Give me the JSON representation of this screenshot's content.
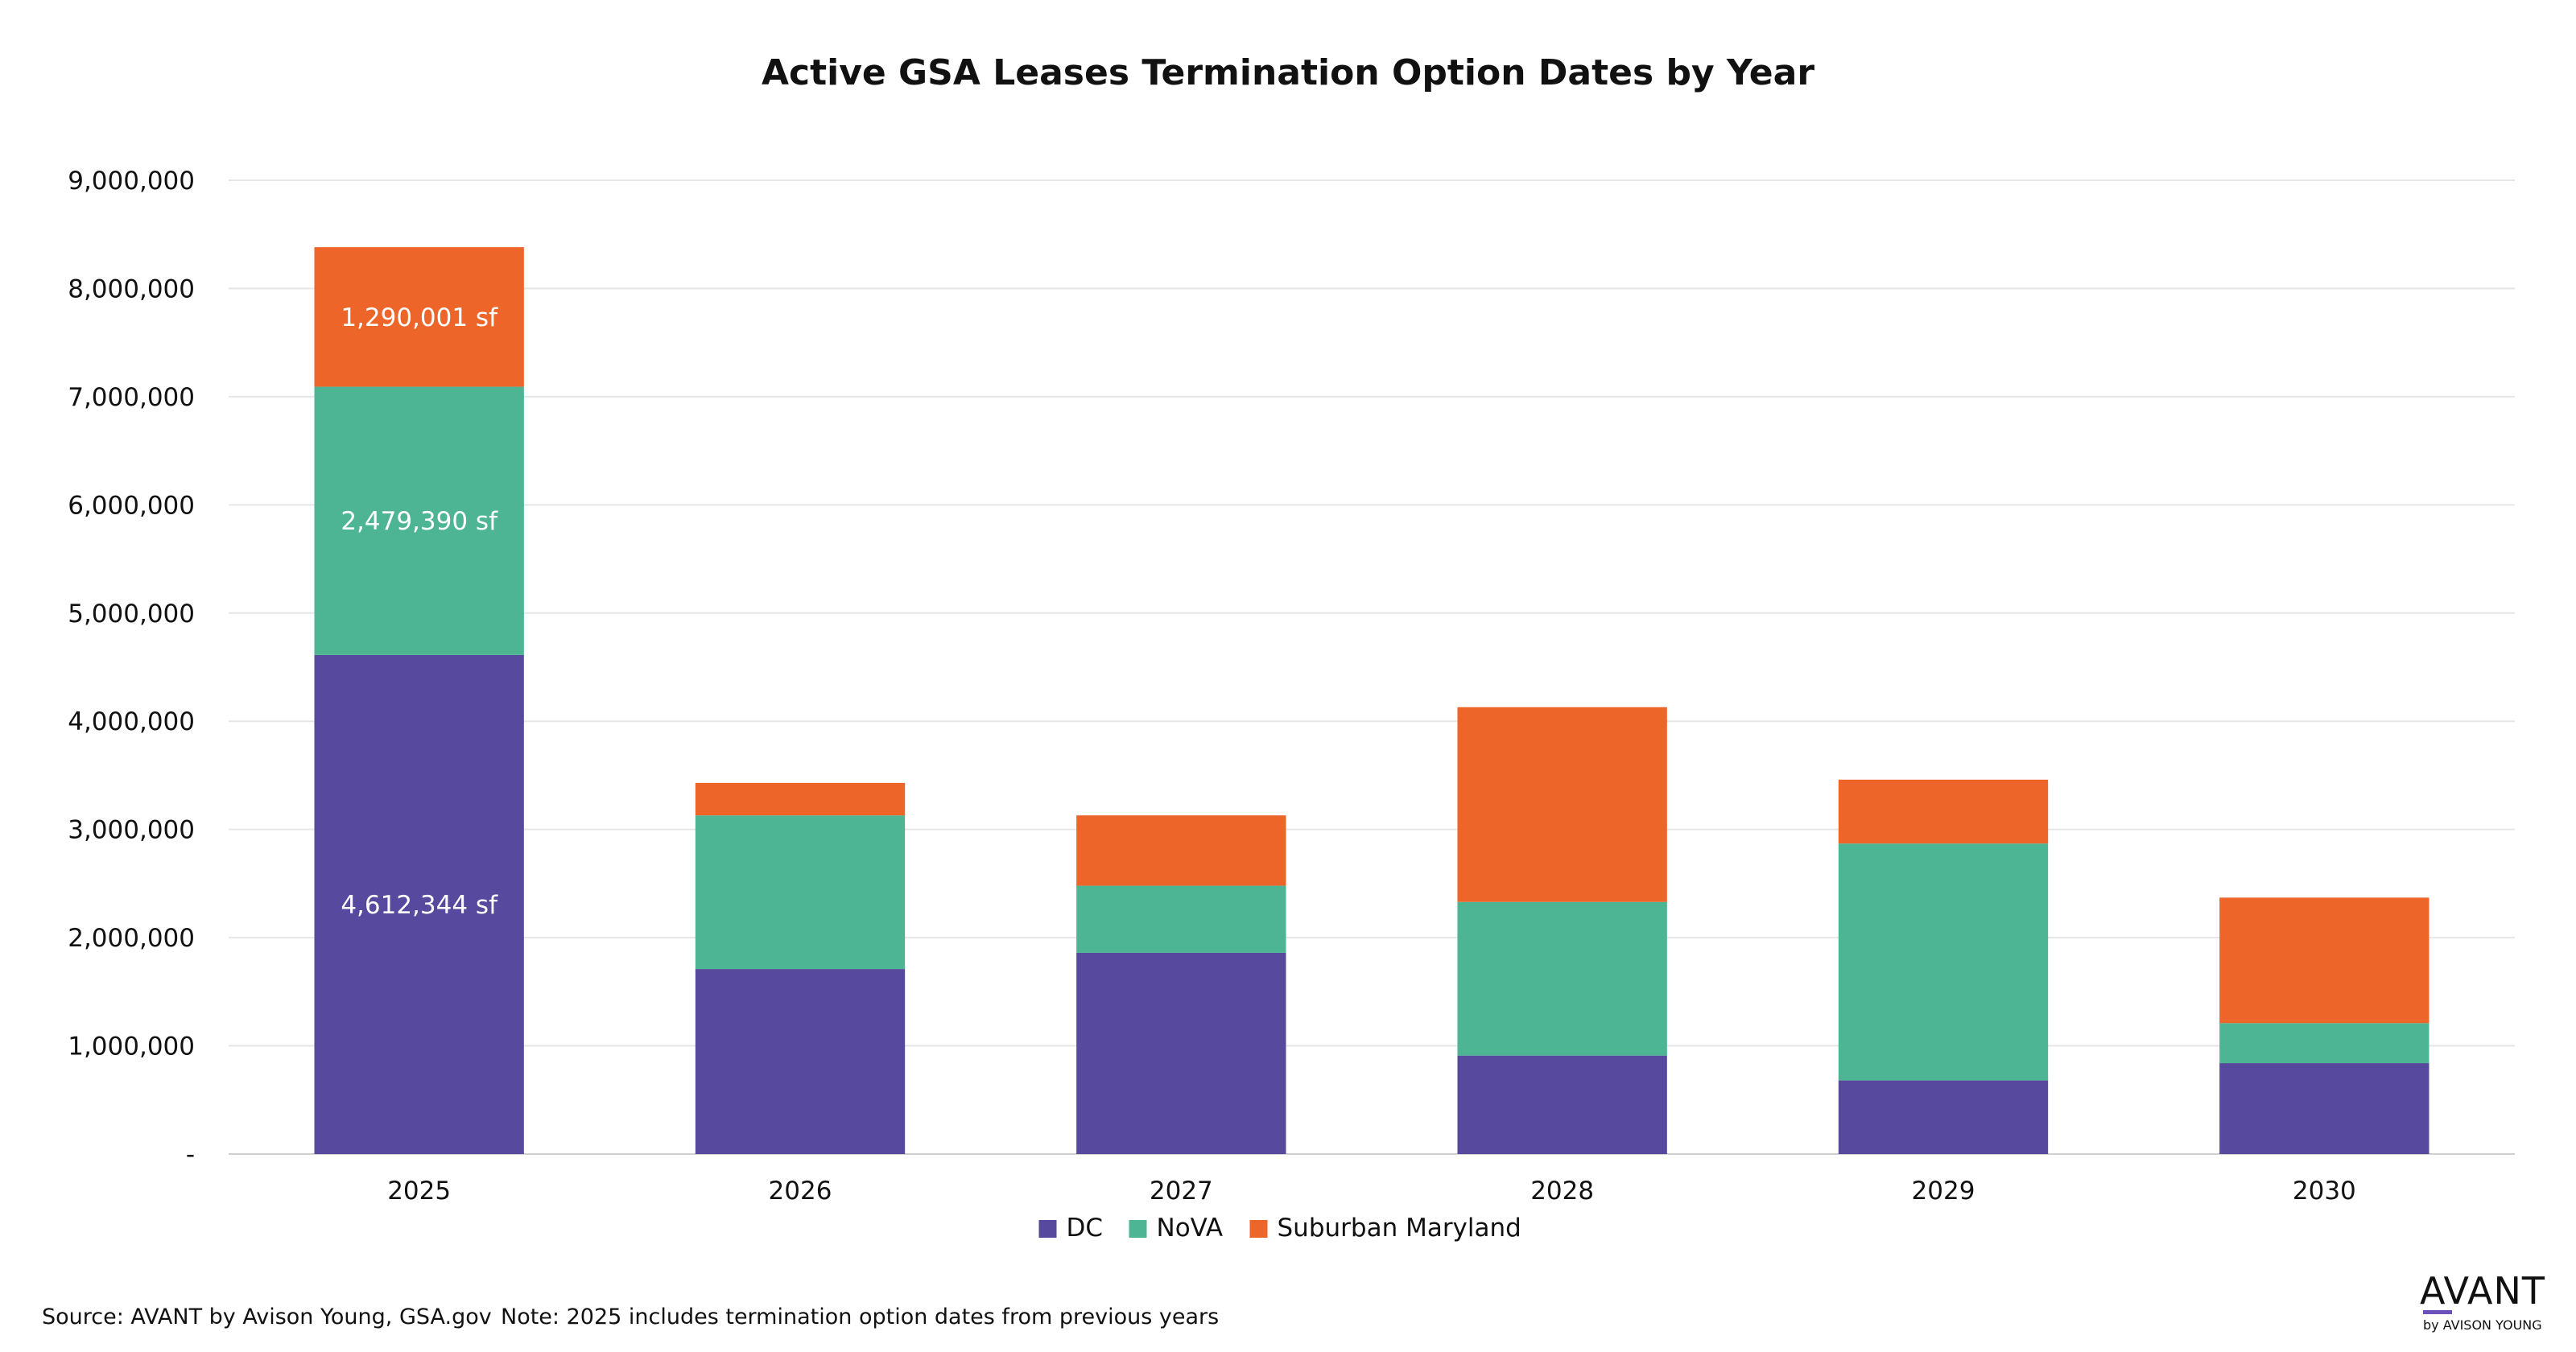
{
  "chart_data": {
    "type": "bar",
    "stacked": true,
    "title": "Active GSA Leases Termination Option Dates by Year",
    "categories": [
      "2025",
      "2026",
      "2027",
      "2028",
      "2029",
      "2030"
    ],
    "series": [
      {
        "name": "DC",
        "color": "#574A9E",
        "values": [
          4612344,
          1710000,
          1860000,
          910000,
          680000,
          840000
        ]
      },
      {
        "name": "NoVA",
        "color": "#4DB594",
        "values": [
          2479390,
          1420000,
          620000,
          1420000,
          2190000,
          370000
        ]
      },
      {
        "name": "Suburban Maryland",
        "color": "#EE6529",
        "values": [
          1290001,
          300000,
          650000,
          1800000,
          590000,
          1160000
        ]
      }
    ],
    "data_labels": [
      {
        "category": "2025",
        "series": "DC",
        "text": "4,612,344 sf"
      },
      {
        "category": "2025",
        "series": "NoVA",
        "text": "2,479,390 sf"
      },
      {
        "category": "2025",
        "series": "Suburban Maryland",
        "text": "1,290,001 sf"
      }
    ],
    "ylim": [
      0,
      9000000
    ],
    "yticks": [
      {
        "value": 0,
        "label": "-"
      },
      {
        "value": 1000000,
        "label": "1,000,000"
      },
      {
        "value": 2000000,
        "label": "2,000,000"
      },
      {
        "value": 3000000,
        "label": "3,000,000"
      },
      {
        "value": 4000000,
        "label": "4,000,000"
      },
      {
        "value": 5000000,
        "label": "5,000,000"
      },
      {
        "value": 6000000,
        "label": "6,000,000"
      },
      {
        "value": 7000000,
        "label": "7,000,000"
      },
      {
        "value": 8000000,
        "label": "8,000,000"
      },
      {
        "value": 9000000,
        "label": "9,000,000"
      }
    ],
    "xlabel": "",
    "ylabel": "",
    "grid": true,
    "legend_position": "bottom"
  },
  "footer": {
    "source": "Source: AVANT by Avison Young, GSA.gov",
    "note": "Note: 2025 includes termination option dates from previous years"
  },
  "logo": {
    "main": "AVANT",
    "sub": "by AVISON YOUNG",
    "accent_color": "#6B4FBB"
  }
}
